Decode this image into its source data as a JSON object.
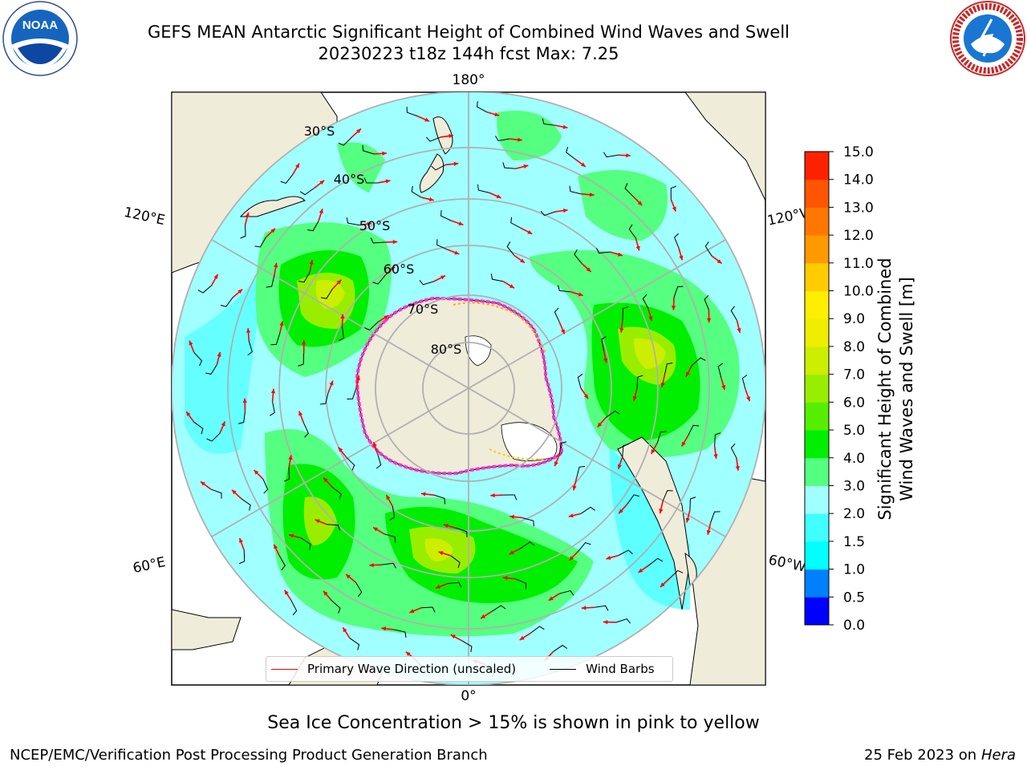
{
  "title_line1": "GEFS MEAN Antarctic Significant Height of Combined Wind Waves and Swell",
  "title_line2": "20230223 t18z 144h fcst   Max: 7.25",
  "logos": {
    "left": "NOAA",
    "right": "NATIONAL WEATHER SERVICE"
  },
  "map": {
    "longitude_labels": [
      "180°",
      "120°E",
      "120°W",
      "60°E",
      "60°W",
      "0°"
    ],
    "latitude_labels": [
      "30°S",
      "40°S",
      "50°S",
      "60°S",
      "70°S",
      "80°S"
    ]
  },
  "legend": {
    "wave_direction": "Primary Wave Direction (unscaled)",
    "wind_barbs": "Wind Barbs",
    "wave_color": "#ff0000",
    "barb_color": "#000000"
  },
  "colorbar": {
    "label_line1": "Significant Height of Combined",
    "label_line2": "Wind Waves and Swell [m]",
    "ticks": [
      "0.0",
      "0.5",
      "1.0",
      "1.5",
      "2.0",
      "3.0",
      "4.0",
      "5.0",
      "6.0",
      "7.0",
      "8.0",
      "9.0",
      "10.0",
      "11.0",
      "12.0",
      "13.0",
      "14.0",
      "15.0"
    ],
    "colors": [
      "#0000ff",
      "#0080ff",
      "#00ffff",
      "#40ffff",
      "#a0ffff",
      "#55ff7f",
      "#00ee00",
      "#55ee00",
      "#99ee00",
      "#ccee00",
      "#eeee00",
      "#ffee00",
      "#ffcc00",
      "#ff9900",
      "#ff7700",
      "#ff5500",
      "#ff2200"
    ]
  },
  "sea_ice_note": "Sea Ice Concentration > 15% is shown in pink to yellow",
  "footer_left": "NCEP/EMC/Verification Post Processing Product Generation Branch",
  "footer_date": "25 Feb 2023 on",
  "footer_host": "Hera"
}
